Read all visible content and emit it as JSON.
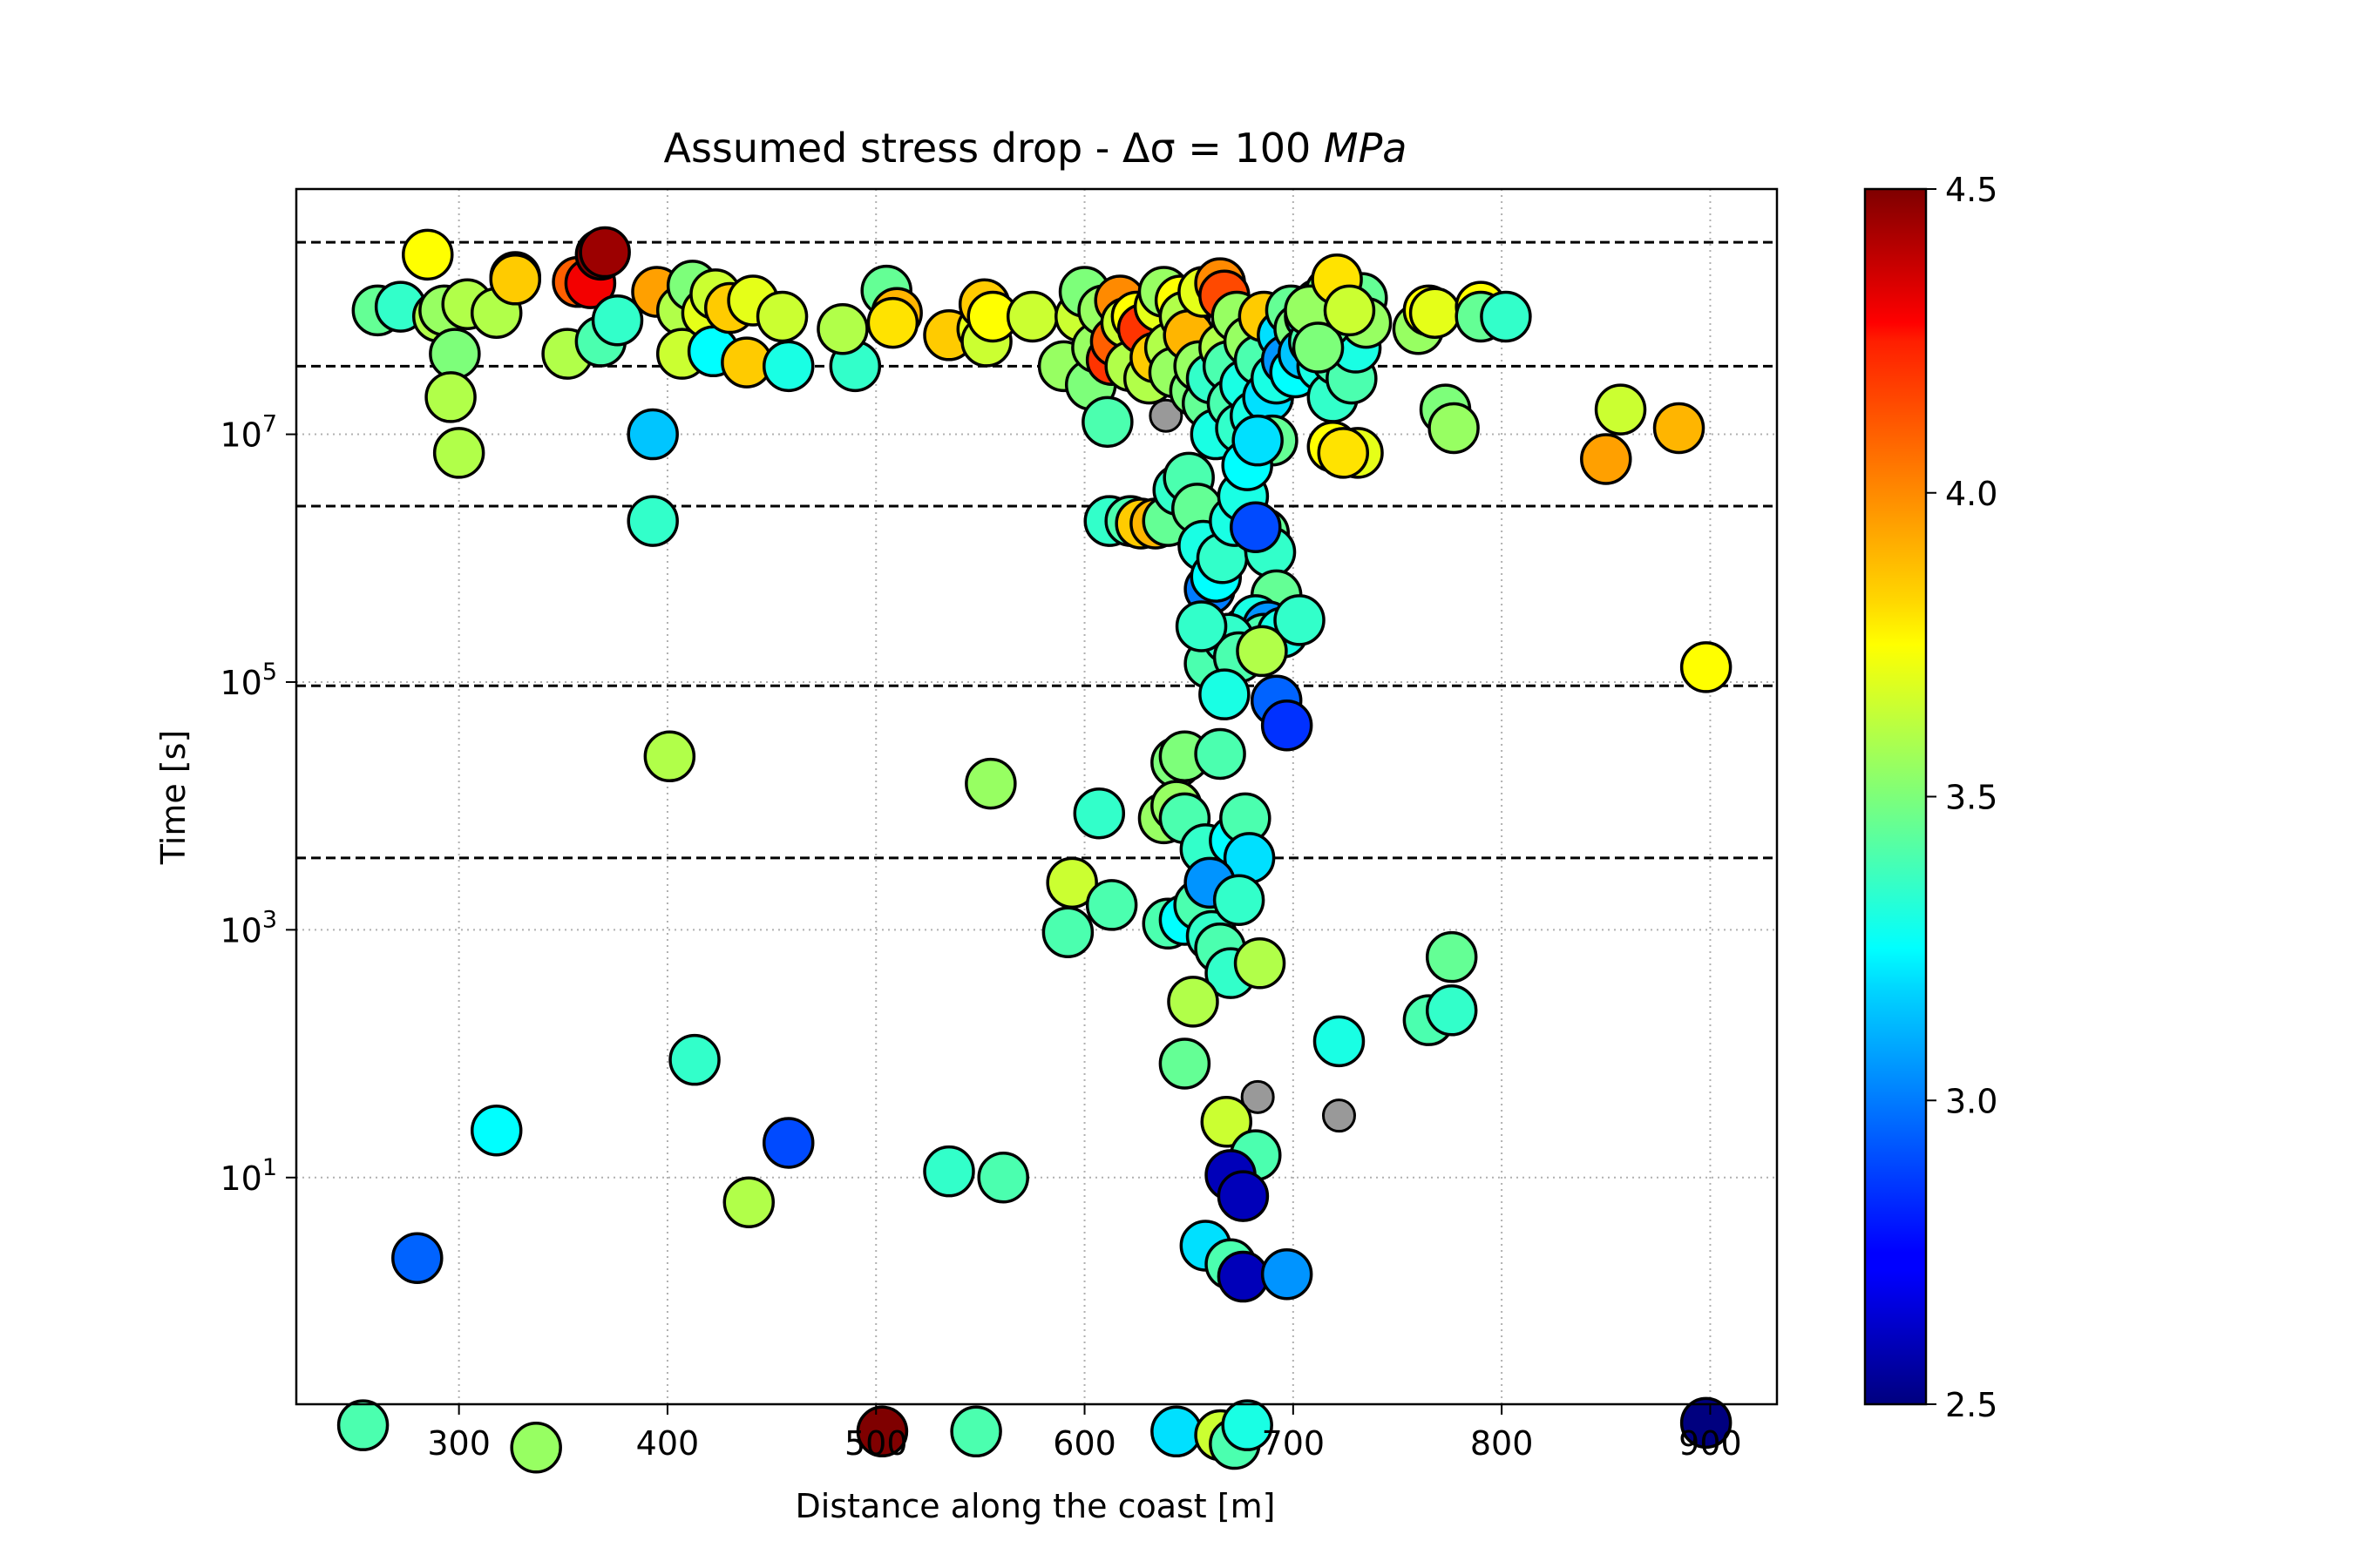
{
  "chart_data": {
    "type": "scatter",
    "title": "Assumed stress drop - Δσ = 100 MPa",
    "title_parts": {
      "prefix": "Assumed stress drop - Δσ = 100 ",
      "unit": "MPa"
    },
    "xlabel": "Distance along the coast [m]",
    "ylabel": "Time [s]",
    "xlim": [
      222,
      932
    ],
    "ylim_log10": [
      -0.83,
      8.98
    ],
    "y_scale": "log",
    "grid": true,
    "x_ticks": [
      300,
      400,
      500,
      600,
      700,
      800,
      900
    ],
    "y_ticks": [
      {
        "base": "10",
        "exp": "1",
        "value_log10": 1
      },
      {
        "base": "10",
        "exp": "3",
        "value_log10": 3
      },
      {
        "base": "10",
        "exp": "5",
        "value_log10": 5
      },
      {
        "base": "10",
        "exp": "7",
        "value_log10": 7
      }
    ],
    "reference_lines_log10": [
      8.55,
      7.55,
      6.42,
      4.97,
      3.58
    ],
    "colorbar": {
      "colormap": "jet",
      "min": 2.5,
      "max": 4.5,
      "ticks": [
        "2.5",
        "3.0",
        "3.5",
        "4.0",
        "4.5"
      ],
      "placement": "right"
    },
    "no_value_color": "#999999",
    "points_columns": [
      "x_m",
      "log10_time_s",
      "magnitude"
    ],
    "points": [
      [
        261,
        8.0,
        3.45
      ],
      [
        272,
        8.03,
        3.35
      ],
      [
        285,
        8.45,
        3.75
      ],
      [
        290,
        7.95,
        3.6
      ],
      [
        293,
        8.0,
        3.55
      ],
      [
        298,
        7.65,
        3.5
      ],
      [
        296,
        7.3,
        3.6
      ],
      [
        300,
        6.85,
        3.6
      ],
      [
        304,
        8.05,
        3.6
      ],
      [
        318,
        7.98,
        3.6
      ],
      [
        327,
        8.27,
        3.8
      ],
      [
        327,
        8.25,
        3.85
      ],
      [
        352,
        7.65,
        3.6
      ],
      [
        357,
        8.23,
        4.1
      ],
      [
        363,
        8.22,
        4.3
      ],
      [
        368,
        8.45,
        4.5
      ],
      [
        370,
        8.47,
        4.45
      ],
      [
        368,
        7.75,
        3.4
      ],
      [
        376,
        7.92,
        3.35
      ],
      [
        395,
        8.15,
        3.95
      ],
      [
        393,
        7.0,
        3.15
      ],
      [
        393,
        6.3,
        3.35
      ],
      [
        407,
        8.0,
        3.6
      ],
      [
        407,
        7.65,
        3.65
      ],
      [
        412,
        8.2,
        3.5
      ],
      [
        419,
        7.98,
        3.7
      ],
      [
        423,
        8.13,
        3.65
      ],
      [
        422,
        7.67,
        3.25
      ],
      [
        430,
        8.02,
        3.85
      ],
      [
        438,
        7.58,
        3.85
      ],
      [
        441,
        8.08,
        3.7
      ],
      [
        455,
        7.95,
        3.65
      ],
      [
        458,
        7.55,
        3.3
      ],
      [
        490,
        7.55,
        3.35
      ],
      [
        484,
        7.85,
        3.6
      ],
      [
        505,
        8.16,
        3.45
      ],
      [
        510,
        7.98,
        3.9
      ],
      [
        508,
        7.9,
        3.8
      ],
      [
        535,
        7.8,
        3.85
      ],
      [
        551,
        7.85,
        3.7
      ],
      [
        553,
        7.75,
        3.65
      ],
      [
        552,
        8.05,
        3.85
      ],
      [
        556,
        7.95,
        3.75
      ],
      [
        575,
        7.95,
        3.65
      ],
      [
        590,
        7.55,
        3.55
      ],
      [
        598,
        7.95,
        3.65
      ],
      [
        600,
        8.15,
        3.5
      ],
      [
        603,
        7.4,
        3.5
      ],
      [
        606,
        7.7,
        3.55
      ],
      [
        609,
        8.0,
        3.55
      ],
      [
        611,
        7.1,
        3.4
      ],
      [
        613,
        7.6,
        4.2
      ],
      [
        615,
        7.75,
        4.1
      ],
      [
        617,
        8.08,
        4.0
      ],
      [
        620,
        7.9,
        3.65
      ],
      [
        622,
        7.55,
        3.6
      ],
      [
        625,
        7.95,
        3.75
      ],
      [
        628,
        7.85,
        4.2
      ],
      [
        631,
        7.45,
        3.6
      ],
      [
        634,
        7.62,
        3.85
      ],
      [
        636,
        8.03,
        3.7
      ],
      [
        638,
        8.15,
        3.55
      ],
      [
        641,
        7.7,
        3.6
      ],
      [
        643,
        7.5,
        3.55
      ],
      [
        646,
        8.08,
        3.75
      ],
      [
        648,
        7.95,
        3.6
      ],
      [
        650,
        7.8,
        3.9
      ],
      [
        653,
        7.35,
        3.5
      ],
      [
        655,
        7.55,
        3.55
      ],
      [
        657,
        8.15,
        3.7
      ],
      [
        659,
        7.25,
        3.45
      ],
      [
        661,
        7.45,
        3.35
      ],
      [
        663,
        7.0,
        3.3
      ],
      [
        665,
        8.22,
        4.0
      ],
      [
        667,
        8.12,
        4.15
      ],
      [
        667,
        7.7,
        3.6
      ],
      [
        669,
        7.55,
        3.4
      ],
      [
        671,
        7.25,
        3.4
      ],
      [
        673,
        7.95,
        3.55
      ],
      [
        675,
        7.05,
        3.35
      ],
      [
        677,
        7.4,
        3.3
      ],
      [
        679,
        7.75,
        3.55
      ],
      [
        682,
        7.15,
        3.3
      ],
      [
        684,
        7.6,
        3.4
      ],
      [
        686,
        7.95,
        3.85
      ],
      [
        688,
        7.3,
        3.2
      ],
      [
        690,
        6.95,
        3.45
      ],
      [
        692,
        7.45,
        3.3
      ],
      [
        695,
        7.8,
        3.2
      ],
      [
        697,
        7.6,
        3.05
      ],
      [
        699,
        8.0,
        3.45
      ],
      [
        701,
        7.5,
        3.25
      ],
      [
        703,
        7.85,
        3.5
      ],
      [
        705,
        7.65,
        3.15
      ],
      [
        708,
        7.95,
        3.3
      ],
      [
        710,
        7.75,
        3.4
      ],
      [
        712,
        8.05,
        3.6
      ],
      [
        714,
        7.55,
        3.3
      ],
      [
        716,
        7.9,
        3.2
      ],
      [
        718,
        8.15,
        3.5
      ],
      [
        719,
        7.3,
        3.35
      ],
      [
        721,
        7.6,
        3.4
      ],
      [
        723,
        7.85,
        3.65
      ],
      [
        726,
        7.95,
        3.25
      ],
      [
        728,
        7.45,
        3.4
      ],
      [
        730,
        7.7,
        3.3
      ],
      [
        733,
        8.1,
        3.45
      ],
      [
        731,
        6.85,
        3.7
      ],
      [
        735,
        7.9,
        3.55
      ],
      [
        760,
        7.85,
        3.55
      ],
      [
        765,
        8.0,
        3.75
      ],
      [
        768,
        7.98,
        3.7
      ],
      [
        773,
        7.2,
        3.5
      ],
      [
        777,
        7.05,
        3.55
      ],
      [
        790,
        8.03,
        3.75
      ],
      [
        790,
        7.95,
        3.45
      ],
      [
        802,
        7.95,
        3.35
      ],
      [
        850,
        6.8,
        3.95
      ],
      [
        857,
        7.2,
        3.65
      ],
      [
        885,
        7.05,
        3.9
      ],
      [
        716,
        7.9,
        3.45
      ],
      [
        719,
        6.9,
        3.75
      ],
      [
        724,
        6.85,
        3.8
      ],
      [
        708,
        8.0,
        3.55
      ],
      [
        712,
        7.7,
        3.5
      ],
      [
        721,
        8.25,
        3.8
      ],
      [
        727,
        8.0,
        3.65
      ],
      [
        612,
        6.3,
        3.35
      ],
      [
        622,
        6.3,
        3.4
      ],
      [
        627,
        6.28,
        3.85
      ],
      [
        634,
        6.28,
        3.9
      ],
      [
        640,
        6.3,
        3.45
      ],
      [
        645,
        6.55,
        3.35
      ],
      [
        650,
        6.65,
        3.4
      ],
      [
        654,
        6.4,
        3.45
      ],
      [
        657,
        6.1,
        3.3
      ],
      [
        660,
        5.75,
        3.0
      ],
      [
        663,
        5.85,
        3.25
      ],
      [
        666,
        6.0,
        3.35
      ],
      [
        672,
        6.3,
        3.3
      ],
      [
        676,
        6.5,
        3.3
      ],
      [
        678,
        6.75,
        3.25
      ],
      [
        683,
        6.95,
        3.2
      ],
      [
        686,
        6.2,
        3.45
      ],
      [
        689,
        6.05,
        3.35
      ],
      [
        692,
        5.7,
        3.45
      ],
      [
        682,
        6.25,
        2.9
      ],
      [
        677,
        5.4,
        3.4
      ],
      [
        682,
        5.5,
        3.3
      ],
      [
        688,
        5.45,
        3.05
      ],
      [
        686,
        5.35,
        3.4
      ],
      [
        695,
        5.4,
        3.3
      ],
      [
        703,
        5.5,
        3.35
      ],
      [
        660,
        5.15,
        3.4
      ],
      [
        669,
        5.35,
        3.35
      ],
      [
        674,
        5.2,
        3.4
      ],
      [
        685,
        5.25,
        3.6
      ],
      [
        656,
        5.45,
        3.35
      ],
      [
        667,
        4.9,
        3.3
      ],
      [
        692,
        4.85,
        2.95
      ],
      [
        697,
        4.65,
        2.85
      ],
      [
        898,
        5.12,
        3.75
      ],
      [
        401,
        4.4,
        3.6
      ],
      [
        555,
        4.18,
        3.55
      ],
      [
        644,
        4.35,
        3.5
      ],
      [
        648,
        4.4,
        3.5
      ],
      [
        665,
        4.42,
        3.4
      ],
      [
        607,
        3.94,
        3.35
      ],
      [
        638,
        3.9,
        3.55
      ],
      [
        644,
        4.0,
        3.55
      ],
      [
        648,
        3.9,
        3.4
      ],
      [
        658,
        3.65,
        3.35
      ],
      [
        672,
        3.72,
        3.25
      ],
      [
        677,
        3.9,
        3.4
      ],
      [
        679,
        3.58,
        3.2
      ],
      [
        594,
        3.38,
        3.65
      ],
      [
        613,
        3.2,
        3.4
      ],
      [
        592,
        2.98,
        3.4
      ],
      [
        640,
        3.05,
        3.4
      ],
      [
        648,
        3.08,
        3.25
      ],
      [
        655,
        3.2,
        3.4
      ],
      [
        660,
        3.38,
        3.05
      ],
      [
        661,
        2.95,
        3.35
      ],
      [
        665,
        2.85,
        3.4
      ],
      [
        670,
        2.65,
        3.35
      ],
      [
        674,
        3.24,
        3.35
      ],
      [
        684,
        2.73,
        3.6
      ],
      [
        652,
        2.42,
        3.6
      ],
      [
        648,
        1.92,
        3.45
      ],
      [
        722,
        2.1,
        3.3
      ],
      [
        765,
        2.27,
        3.4
      ],
      [
        776,
        2.35,
        3.35
      ],
      [
        776,
        2.78,
        3.45
      ],
      [
        413,
        1.95,
        3.35
      ],
      [
        318,
        1.38,
        3.25
      ],
      [
        458,
        1.28,
        2.9
      ],
      [
        439,
        0.8,
        3.6
      ],
      [
        535,
        1.05,
        3.35
      ],
      [
        561,
        1.0,
        3.4
      ],
      [
        668,
        1.45,
        3.65
      ],
      [
        682,
        1.18,
        3.4
      ],
      [
        670,
        1.02,
        2.6
      ],
      [
        676,
        0.85,
        2.6
      ],
      [
        658,
        0.45,
        3.2
      ],
      [
        670,
        0.3,
        3.4
      ],
      [
        676,
        0.2,
        2.6
      ],
      [
        697,
        0.22,
        3.05
      ],
      [
        280,
        0.35,
        2.95
      ],
      [
        254,
        -1.0,
        3.4
      ],
      [
        337,
        -1.18,
        3.55
      ],
      [
        503,
        -1.05,
        4.5
      ],
      [
        548,
        -1.05,
        3.4
      ],
      [
        644,
        -1.05,
        3.2
      ],
      [
        665,
        -1.08,
        3.65
      ],
      [
        672,
        -1.15,
        3.4
      ],
      [
        678,
        -1.0,
        3.3
      ],
      [
        898,
        -0.98,
        2.5
      ]
    ],
    "no_value_points_columns": [
      "x_m",
      "log10_time_s"
    ],
    "no_value_points": [
      [
        639,
        7.15
      ],
      [
        664,
        4.35
      ],
      [
        683,
        1.65
      ],
      [
        722,
        1.5
      ]
    ]
  }
}
